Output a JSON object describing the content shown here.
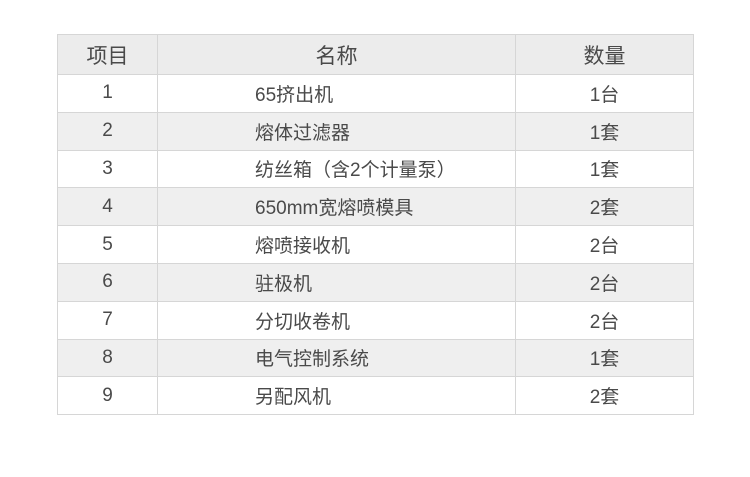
{
  "table": {
    "headers": [
      "项目",
      "名称",
      "数量"
    ],
    "rows": [
      {
        "item": "1",
        "name": "65挤出机",
        "qty": "1台"
      },
      {
        "item": "2",
        "name": "熔体过滤器",
        "qty": "1套"
      },
      {
        "item": "3",
        "name": "纺丝箱（含2个计量泵）",
        "qty": "1套"
      },
      {
        "item": "4",
        "name": "650mm宽熔喷模具",
        "qty": "2套"
      },
      {
        "item": "5",
        "name": "熔喷接收机",
        "qty": "2台"
      },
      {
        "item": "6",
        "name": "驻极机",
        "qty": "2台"
      },
      {
        "item": "7",
        "name": "分切收卷机",
        "qty": "2台"
      },
      {
        "item": "8",
        "name": "电气控制系统",
        "qty": "1套"
      },
      {
        "item": "9",
        "name": "另配风机",
        "qty": "2套"
      }
    ]
  },
  "colors": {
    "page_background": "#ffffff",
    "header_background": "#ececec",
    "stripe_background": "#efefef",
    "border": "#d6d6d6",
    "text": "#4a4a4a"
  }
}
